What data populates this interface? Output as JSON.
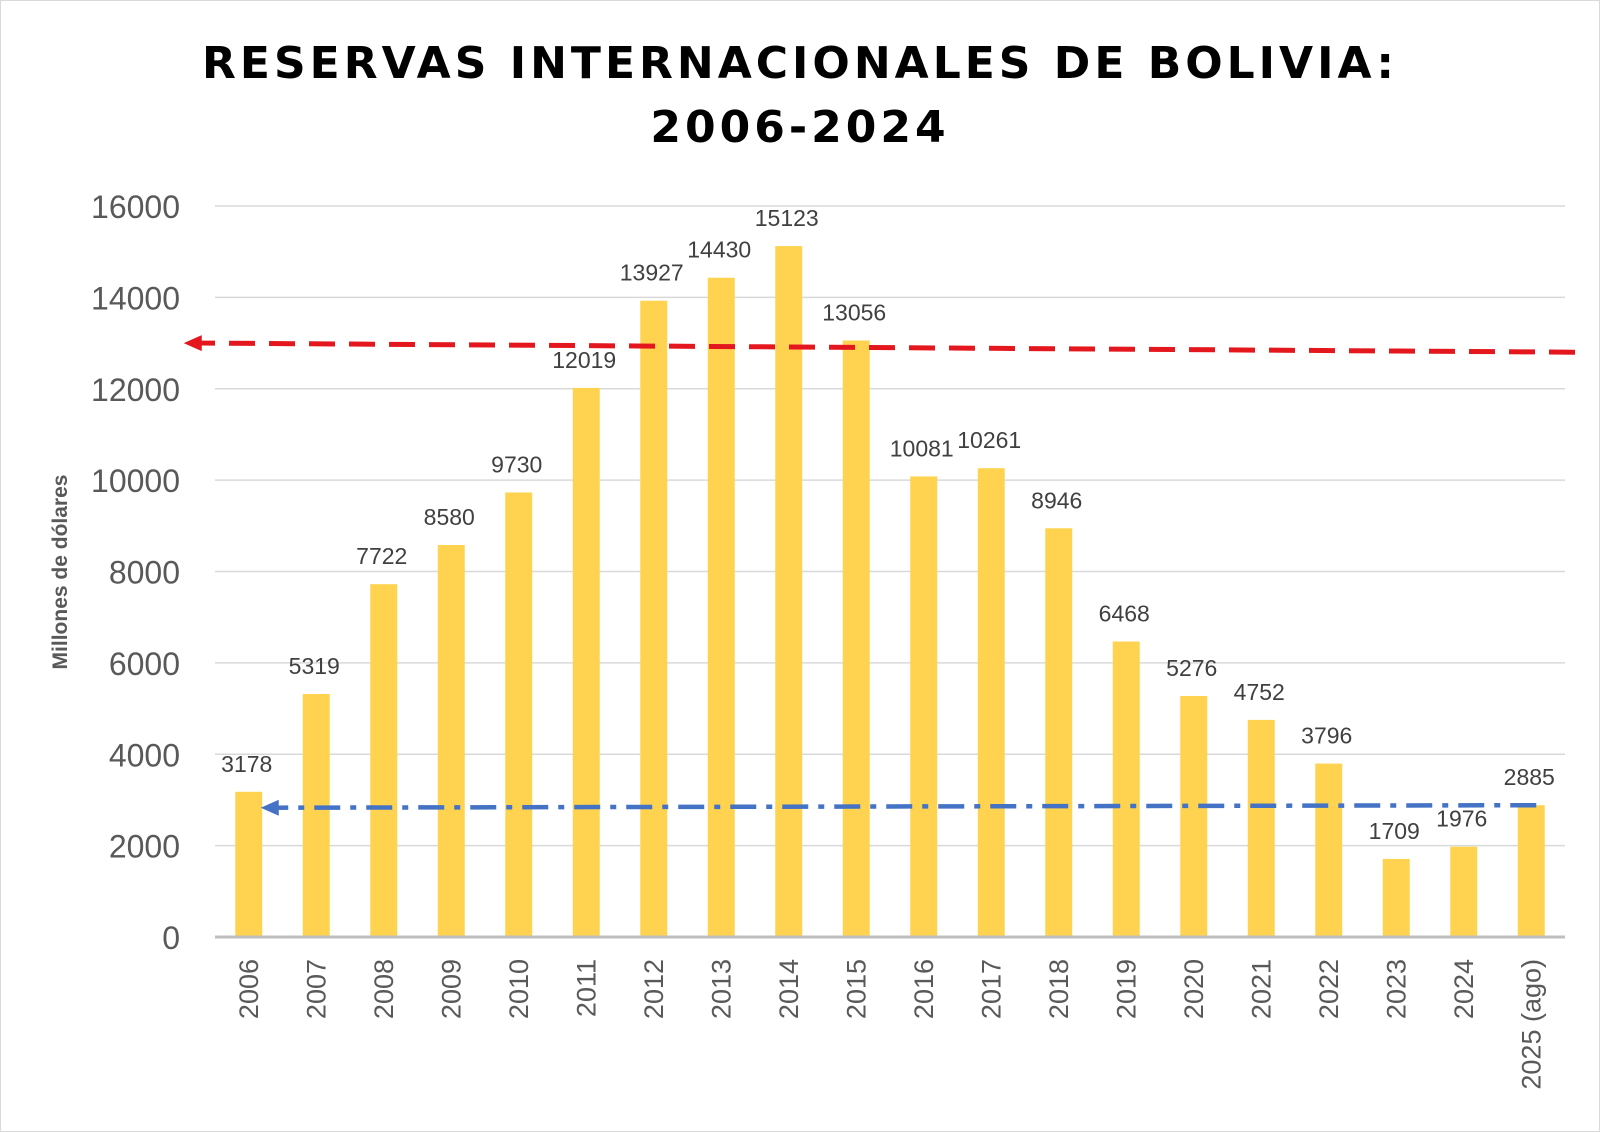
{
  "colors": {
    "bar": "#FFD350",
    "grid": "#D9D9D9",
    "axis": "#BFBFBF",
    "tick_text": "#595959",
    "label_text": "#404040",
    "red_line": "#E3171D",
    "blue_line": "#4472C4"
  },
  "chart_data": {
    "type": "bar",
    "title_lines": [
      "RESERVAS INTERNACIONALES DE BOLIVIA:",
      "2006-2024"
    ],
    "ylabel": "Millones de dólares",
    "xlabel": "",
    "ylim": [
      0,
      16000
    ],
    "yticks": [
      "0",
      "2000",
      "4000",
      "6000",
      "8000",
      "10000",
      "12000",
      "14000",
      "16000"
    ],
    "grid": true,
    "categories": [
      "2006",
      "2007",
      "2008",
      "2009",
      "2010",
      "2011",
      "2012",
      "2013",
      "2014",
      "2015",
      "2016",
      "2017",
      "2018",
      "2019",
      "2020",
      "2021",
      "2022",
      "2023",
      "2024",
      "2025 (ago)"
    ],
    "values": [
      3178,
      5319,
      7722,
      8580,
      9730,
      12019,
      13927,
      14430,
      15123,
      13056,
      10081,
      10261,
      8946,
      6468,
      5276,
      4752,
      3796,
      1709,
      1976,
      2885
    ],
    "data_labels": [
      "3178",
      "5319",
      "7722",
      "8580",
      "9730",
      "12019",
      "13927",
      "14430",
      "15123",
      "13056",
      "10081",
      "10261",
      "8946",
      "6468",
      "5276",
      "4752",
      "3796",
      "1709",
      "1976",
      "2885"
    ],
    "annotations": [
      {
        "style": "dashed-arrow",
        "color": "red",
        "y_start": 12800,
        "y_end": 13000,
        "arrow": "left",
        "from_category": "2025 (ago)",
        "to_category": "2006"
      },
      {
        "style": "dash-dot-arrow",
        "color": "blue",
        "y_start": 2885,
        "y_end": 2830,
        "arrow": "left",
        "from_category": "2025 (ago)",
        "to_category": "2006"
      }
    ]
  }
}
